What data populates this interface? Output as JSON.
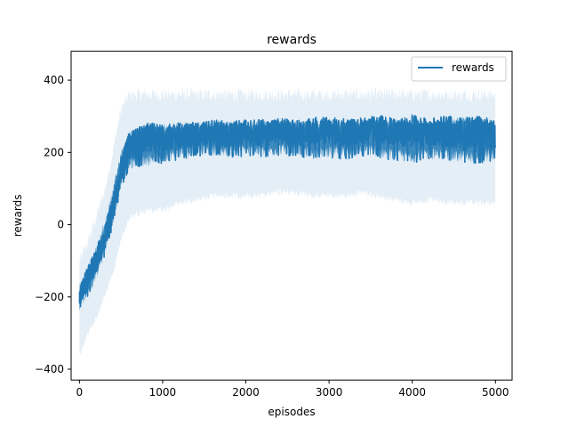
{
  "chart_data": {
    "type": "line",
    "title": "rewards",
    "xlabel": "episodes",
    "ylabel": "rewards",
    "xlim": [
      -100,
      5200
    ],
    "ylim": [
      -430,
      480
    ],
    "xticks": [
      0,
      1000,
      2000,
      3000,
      4000,
      5000
    ],
    "yticks": [
      -400,
      -200,
      0,
      200,
      400
    ],
    "xtick_labels": [
      "0",
      "1000",
      "2000",
      "3000",
      "4000",
      "5000"
    ],
    "ytick_labels": [
      "−400",
      "−200",
      "0",
      "200",
      "400"
    ],
    "grid": false,
    "legend_position": "top-right",
    "series": [
      {
        "name": "rewards",
        "color": "#1f77b4",
        "band_color": "#1f77b4",
        "x": [
          0,
          100,
          200,
          300,
          400,
          500,
          600,
          700,
          800,
          900,
          1000,
          1200,
          1400,
          1600,
          1800,
          2000,
          2200,
          2400,
          2600,
          2800,
          3000,
          3200,
          3400,
          3600,
          3800,
          4000,
          4200,
          4400,
          4600,
          4800,
          5000
        ],
        "mean": [
          -200,
          -150,
          -100,
          -40,
          40,
          150,
          220,
          230,
          240,
          245,
          240,
          245,
          250,
          255,
          250,
          255,
          255,
          260,
          255,
          260,
          260,
          255,
          260,
          265,
          255,
          260,
          255,
          260,
          250,
          255,
          250
        ],
        "low": [
          -240,
          -200,
          -160,
          -90,
          -10,
          100,
          150,
          160,
          160,
          170,
          170,
          180,
          190,
          190,
          185,
          190,
          185,
          190,
          190,
          180,
          185,
          180,
          190,
          185,
          175,
          170,
          180,
          175,
          170,
          170,
          175
        ],
        "high": [
          -160,
          -110,
          -60,
          10,
          100,
          210,
          260,
          270,
          275,
          280,
          280,
          285,
          285,
          290,
          290,
          290,
          290,
          290,
          290,
          290,
          295,
          290,
          295,
          295,
          290,
          295,
          290,
          295,
          300,
          300,
          290
        ],
        "band_low": [
          -360,
          -300,
          -260,
          -200,
          -140,
          -40,
          20,
          30,
          40,
          40,
          40,
          60,
          70,
          80,
          80,
          80,
          80,
          90,
          90,
          80,
          80,
          80,
          90,
          80,
          70,
          60,
          70,
          60,
          60,
          60,
          60
        ],
        "band_high": [
          -100,
          -50,
          20,
          90,
          200,
          320,
          360,
          360,
          360,
          360,
          360,
          360,
          360,
          360,
          360,
          360,
          360,
          360,
          360,
          360,
          360,
          360,
          360,
          360,
          360,
          360,
          360,
          360,
          360,
          360,
          360
        ]
      }
    ]
  }
}
